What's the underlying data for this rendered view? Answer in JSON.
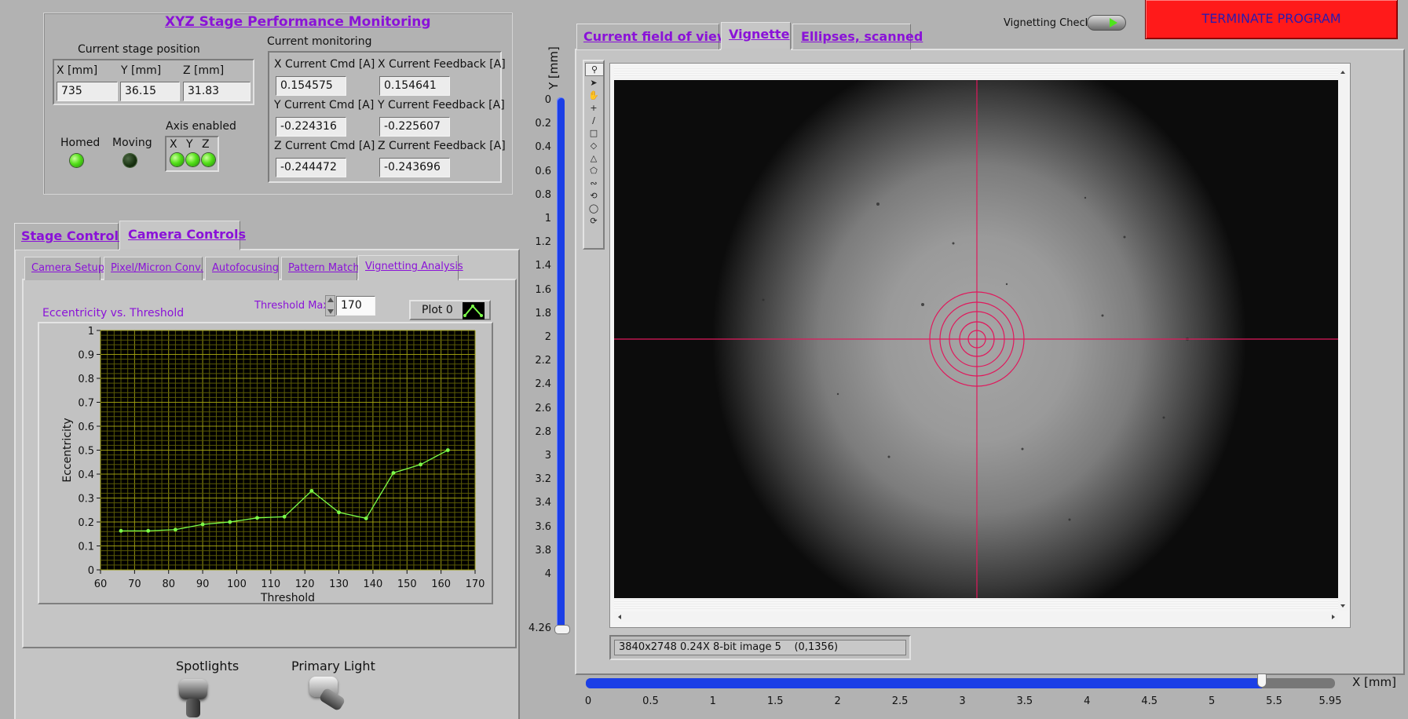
{
  "monitor": {
    "title": "XYZ Stage Performance Monitoring",
    "stage_position_label": "Current stage position",
    "x_label": "X [mm]",
    "y_label": "Y [mm]",
    "z_label": "Z [mm]",
    "x_value": "735",
    "y_value": "36.15",
    "z_value": "31.83",
    "homed_label": "Homed",
    "moving_label": "Moving",
    "axis_enabled_label": "Axis enabled",
    "axis_x": "X",
    "axis_y": "Y",
    "axis_z": "Z",
    "current_monitoring_label": "Current monitoring",
    "x_cmd_label": "X Current Cmd [A]",
    "x_cmd_value": "0.154575",
    "x_fb_label": "X Current Feedback [A]",
    "x_fb_value": "0.154641",
    "y_cmd_label": "Y Current Cmd [A]",
    "y_cmd_value": "-0.224316",
    "y_fb_label": "Y Current Feedback [A]",
    "y_fb_value": "-0.225607",
    "z_cmd_label": "Z Current Cmd [A]",
    "z_cmd_value": "-0.244472",
    "z_fb_label": "Z Current Feedback [A]",
    "z_fb_value": "-0.243696"
  },
  "main_tabs": {
    "stage": "Stage Controls",
    "camera": "Camera Controls"
  },
  "sub_tabs": [
    "Camera Setup",
    "Pixel/Micron Conv.",
    "Autofocusing",
    "Pattern Match",
    "Vignetting Analysis"
  ],
  "analysis": {
    "chart_title": "Eccentricity vs. Threshold",
    "threshold_max_label": "Threshold Max",
    "threshold_max_value": "170",
    "plot_legend": "Plot 0"
  },
  "chart_data": {
    "type": "line",
    "title": "Eccentricity vs. Threshold",
    "xlabel": "Threshold",
    "ylabel": "Eccentricity",
    "xlim": [
      60,
      170
    ],
    "ylim": [
      0,
      1
    ],
    "x_ticks": [
      60,
      70,
      80,
      90,
      100,
      110,
      120,
      130,
      140,
      150,
      160,
      170
    ],
    "y_ticks": [
      "0",
      "0.1",
      "0.2",
      "0.3",
      "0.4",
      "0.5",
      "0.6",
      "0.7",
      "0.8",
      "0.9",
      "1"
    ],
    "grid": true,
    "series": [
      {
        "name": "Plot 0",
        "color": "#7cff4a",
        "x": [
          66,
          74,
          82,
          90,
          98,
          106,
          114,
          122,
          130,
          138,
          146,
          154,
          162
        ],
        "y": [
          0.163,
          0.163,
          0.168,
          0.19,
          0.2,
          0.217,
          0.222,
          0.33,
          0.24,
          0.215,
          0.405,
          0.44,
          0.5
        ]
      }
    ]
  },
  "lights": {
    "spotlights": "Spotlights",
    "primary": "Primary Light"
  },
  "view_tabs": {
    "fov": "Current field of view",
    "vignette": "Vignette",
    "ellipses": "Ellipses, scanned"
  },
  "vignetting_check_label": "Vignetting Check",
  "terminate_label": "TERMINATE PROGRAM",
  "image": {
    "status": "3840x2748 0.24X 8-bit image 5",
    "coords": "(0,1356)"
  },
  "y_axis": {
    "label": "Y [mm]",
    "ticks": [
      "0",
      "0.2",
      "0.4",
      "0.6",
      "0.8",
      "1",
      "1.2",
      "1.4",
      "1.6",
      "1.8",
      "2",
      "2.2",
      "2.4",
      "2.6",
      "2.8",
      "3",
      "3.2",
      "3.4",
      "3.6",
      "3.8",
      "4"
    ],
    "max_label": "4.26"
  },
  "x_axis": {
    "label": "X [mm]",
    "ticks": [
      "0",
      "0.5",
      "1",
      "1.5",
      "2",
      "2.5",
      "3",
      "3.5",
      "4",
      "4.5",
      "5",
      "5.5",
      "5.95"
    ],
    "slider_value": 5.4,
    "max": 5.95
  },
  "colors": {
    "accent_link": "#8a12d8",
    "terminate_bg": "#ff1a1a",
    "slider_blue": "#1b3fe6",
    "crosshair": "#e0185c",
    "plot_green": "#7cff4a"
  }
}
